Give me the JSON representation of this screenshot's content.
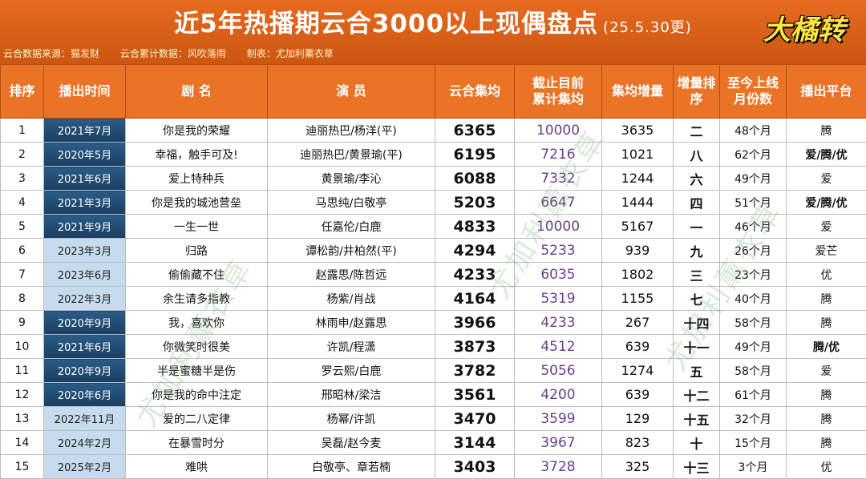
{
  "header": {
    "title": "近5年热播期云合3000以上现偶盘点",
    "update_note": "(25.5.30更)",
    "brand": "大橘转",
    "credits": [
      "云合数据来源：猫发财",
      "云合累计数据：风吹落雨",
      "制表：尤加利薰衣草"
    ]
  },
  "table": {
    "headers": [
      "排序",
      "播出时间",
      "剧  名",
      "演  员",
      "云合集均",
      "截止目前\n累计集均",
      "集均增量",
      "增量排\n序",
      "至今上线\n月份数",
      "播出平台"
    ],
    "rows": [
      {
        "rank": "1",
        "date": "2021年7月",
        "title": "你是我的荣耀",
        "cast": "迪丽热巴/杨洋(平)",
        "ep_avg": "6365",
        "cum_avg": "10000",
        "inc": "3635",
        "inc_rank": "二",
        "months": "48个月",
        "platform": "腾"
      },
      {
        "rank": "2",
        "date": "2020年5月",
        "title": "幸福，触手可及!",
        "cast": "迪丽热巴/黄景瑜(平)",
        "ep_avg": "6195",
        "cum_avg": "7216",
        "inc": "1021",
        "inc_rank": "八",
        "months": "62个月",
        "platform": "爱/腾/优"
      },
      {
        "rank": "3",
        "date": "2021年6月",
        "title": "爱上特种兵",
        "cast": "黄景瑜/李沁",
        "ep_avg": "6088",
        "cum_avg": "7332",
        "inc": "1244",
        "inc_rank": "六",
        "months": "49个月",
        "platform": "爱"
      },
      {
        "rank": "4",
        "date": "2021年3月",
        "title": "你是我的城池营垒",
        "cast": "马思纯/白敬亭",
        "ep_avg": "5203",
        "cum_avg": "6647",
        "inc": "1444",
        "inc_rank": "四",
        "months": "51个月",
        "platform": "爱/腾/优"
      },
      {
        "rank": "5",
        "date": "2021年9月",
        "title": "一生一世",
        "cast": "任嘉伦/白鹿",
        "ep_avg": "4833",
        "cum_avg": "10000",
        "inc": "5167",
        "inc_rank": "一",
        "months": "46个月",
        "platform": "爱"
      },
      {
        "rank": "6",
        "date": "2023年3月",
        "title": "归路",
        "cast": "谭松韵/井柏然(平)",
        "ep_avg": "4294",
        "cum_avg": "5233",
        "inc": "939",
        "inc_rank": "九",
        "months": "26个月",
        "platform": "爱芒"
      },
      {
        "rank": "7",
        "date": "2023年6月",
        "title": "偷偷藏不住",
        "cast": "赵露思/陈哲远",
        "ep_avg": "4233",
        "cum_avg": "6035",
        "inc": "1802",
        "inc_rank": "三",
        "months": "23个月",
        "platform": "优"
      },
      {
        "rank": "8",
        "date": "2022年3月",
        "title": "余生请多指教",
        "cast": "杨紫/肖战",
        "ep_avg": "4164",
        "cum_avg": "5319",
        "inc": "1155",
        "inc_rank": "七",
        "months": "40个月",
        "platform": "腾"
      },
      {
        "rank": "9",
        "date": "2020年9月",
        "title": "我，喜欢你",
        "cast": "林雨申/赵露思",
        "ep_avg": "3966",
        "cum_avg": "4233",
        "inc": "267",
        "inc_rank": "十四",
        "months": "58个月",
        "platform": "腾"
      },
      {
        "rank": "10",
        "date": "2021年6月",
        "title": "你微笑时很美",
        "cast": "许凯/程潇",
        "ep_avg": "3873",
        "cum_avg": "4512",
        "inc": "639",
        "inc_rank": "十一",
        "months": "49个月",
        "platform": "腾/优"
      },
      {
        "rank": "11",
        "date": "2020年9月",
        "title": "半是蜜糖半是伤",
        "cast": "罗云熙/白鹿",
        "ep_avg": "3782",
        "cum_avg": "5056",
        "inc": "1274",
        "inc_rank": "五",
        "months": "58个月",
        "platform": "爱"
      },
      {
        "rank": "12",
        "date": "2020年6月",
        "title": "你是我的命中注定",
        "cast": "邢昭林/梁洁",
        "ep_avg": "3561",
        "cum_avg": "4200",
        "inc": "639",
        "inc_rank": "十二",
        "months": "61个月",
        "platform": "腾"
      },
      {
        "rank": "13",
        "date": "2022年11月",
        "title": "爱的二八定律",
        "cast": "杨幂/许凯",
        "ep_avg": "3470",
        "cum_avg": "3599",
        "inc": "129",
        "inc_rank": "十五",
        "months": "32个月",
        "platform": "腾"
      },
      {
        "rank": "14",
        "date": "2024年2月",
        "title": "在暴雪时分",
        "cast": "吴磊/赵今麦",
        "ep_avg": "3144",
        "cum_avg": "3967",
        "inc": "823",
        "inc_rank": "十",
        "months": "15个月",
        "platform": "腾"
      },
      {
        "rank": "15",
        "date": "2025年2月",
        "title": "难哄",
        "cast": "白敬亭、章若楠",
        "ep_avg": "3403",
        "cum_avg": "3728",
        "inc": "325",
        "inc_rank": "十三",
        "months": "3个月",
        "platform": "优"
      }
    ]
  },
  "watermark": "尤加利薰衣草"
}
